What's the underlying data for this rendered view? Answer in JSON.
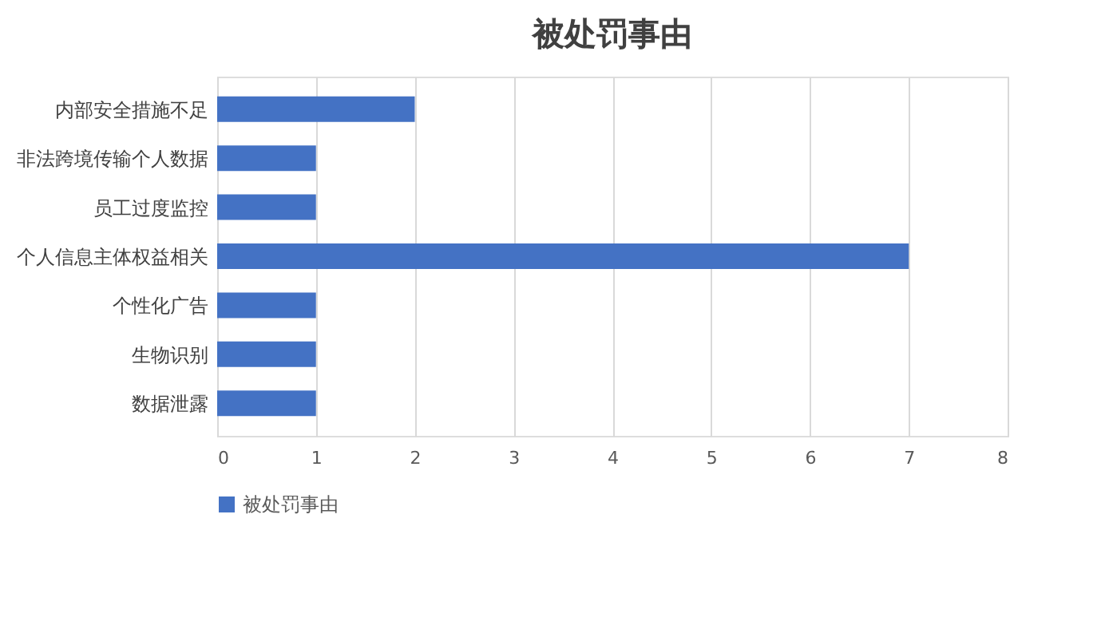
{
  "chart_data": {
    "type": "bar",
    "orientation": "horizontal",
    "title": "被处罚事由",
    "categories": [
      "内部安全措施不足",
      "非法跨境传输个人数据",
      "员工过度监控",
      "个人信息主体权益相关",
      "个性化广告",
      "生物识别",
      "数据泄露"
    ],
    "series": [
      {
        "name": "被处罚事由",
        "color": "#4472c4",
        "values": [
          2,
          1,
          1,
          7,
          1,
          1,
          1
        ]
      }
    ],
    "xlim": [
      0,
      8
    ],
    "xticks": [
      0,
      1,
      2,
      3,
      4,
      5,
      6,
      7,
      8
    ],
    "grid": "x",
    "legend": "bottom"
  }
}
